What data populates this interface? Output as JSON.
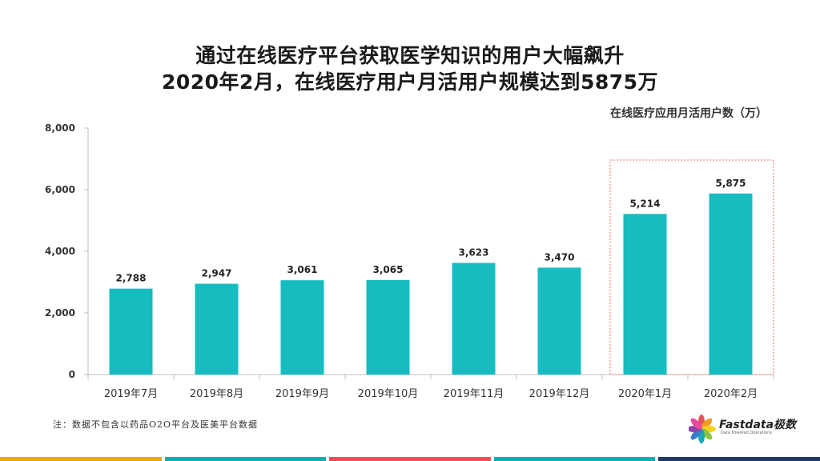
{
  "title_line1": "通过在线医疗平台获取医学知识的用户大幅飙升",
  "title_line2": "2020年2月，在线医疗用户月活用户规模达到5875万",
  "unit_label": "在线医疗应用月活用户数（万）",
  "footnote": "注：数据不包含以药品O2O平台及医美平台数据",
  "logo": {
    "name": "Fastdata极数",
    "tagline": "Data Powered Operations"
  },
  "colors": {
    "bar": "#16bcc0",
    "axis": "#bfbfbf",
    "highlight_box": "#e07560",
    "footer": [
      "#e6a817",
      "#16aab0",
      "#e5525a",
      "#16aab0",
      "#1f3864"
    ]
  },
  "chart_data": {
    "type": "bar",
    "categories": [
      "2019年7月",
      "2019年8月",
      "2019年9月",
      "2019年10月",
      "2019年11月",
      "2019年12月",
      "2020年1月",
      "2020年2月"
    ],
    "values": [
      2788,
      2947,
      3061,
      3065,
      3623,
      3470,
      5214,
      5875
    ],
    "value_labels": [
      "2,788",
      "2,947",
      "3,061",
      "3,065",
      "3,623",
      "3,470",
      "5,214",
      "5,875"
    ],
    "ylim": [
      0,
      8000
    ],
    "yticks": [
      0,
      2000,
      4000,
      6000,
      8000
    ],
    "ytick_labels": [
      "0",
      "2,000",
      "4,000",
      "6,000",
      "8,000"
    ],
    "highlighted_categories": [
      "2020年1月",
      "2020年2月"
    ],
    "grid": false,
    "title": "",
    "xlabel": "",
    "ylabel": "在线医疗应用月活用户数（万）"
  }
}
